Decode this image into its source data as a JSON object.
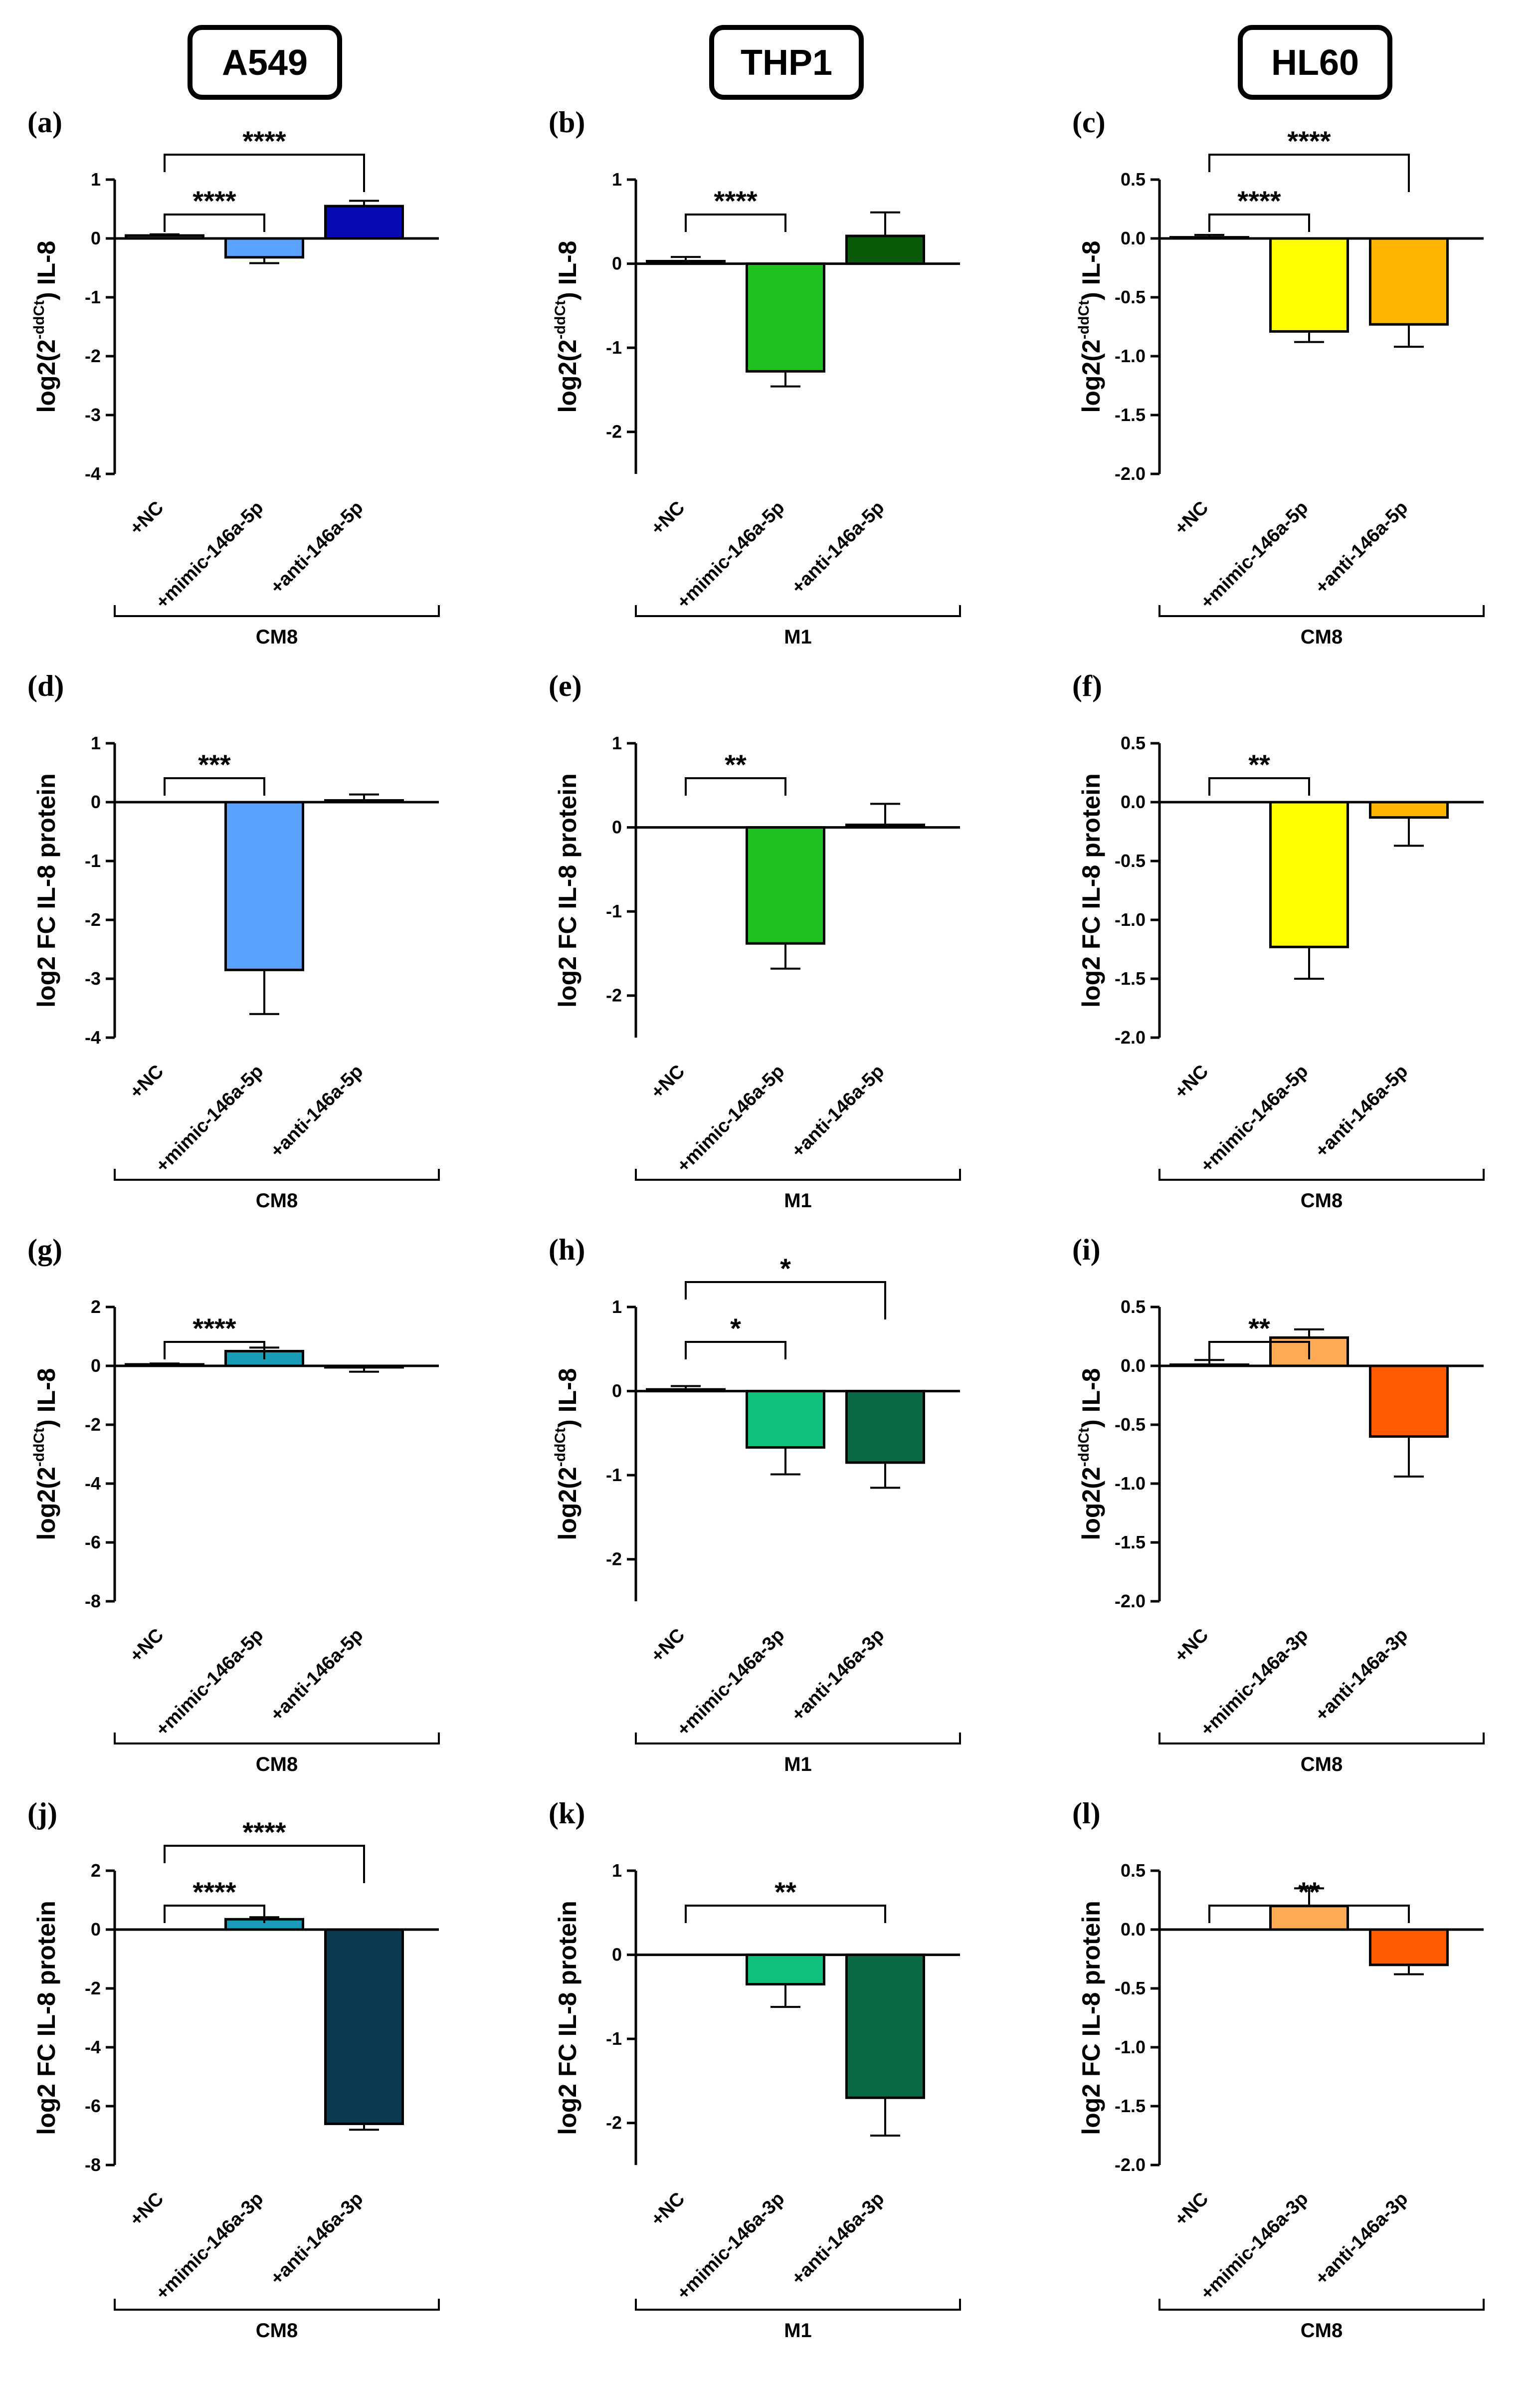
{
  "columns": [
    "A549",
    "THP1",
    "HL60"
  ],
  "chart_data": [
    {
      "panel": "(a)",
      "type": "bar",
      "ylabel_main": "log2(2",
      "ylabel_sup": "-ddCt",
      "ylabel_tail": ") IL-8",
      "yticks": [
        "1",
        "0",
        "-1",
        "-2",
        "-3",
        "-4"
      ],
      "ylim": [
        -4,
        1
      ],
      "categories": [
        "+NC",
        "+mimic-146a-5p",
        "+anti-146a-5p"
      ],
      "values": [
        0.05,
        -0.32,
        0.55
      ],
      "errors": [
        0.02,
        0.1,
        0.09
      ],
      "colors": [
        "#4a4a4a",
        "#5aa2ff",
        "#0a0ab4"
      ],
      "group": "CM8",
      "sig": [
        {
          "from": 0,
          "to": 1,
          "label": "****",
          "level": 1
        },
        {
          "from": 0,
          "to": 2,
          "label": "****",
          "level": 2
        }
      ]
    },
    {
      "panel": "(b)",
      "type": "bar",
      "ylabel_main": "log2(2",
      "ylabel_sup": "-ddCt",
      "ylabel_tail": ") IL-8",
      "yticks": [
        "1",
        "0",
        "-1",
        "-2"
      ],
      "ylim": [
        -2.5,
        1
      ],
      "categories": [
        "+NC",
        "+mimic-146a-5p",
        "+anti-146a-5p"
      ],
      "values": [
        0.03,
        -1.28,
        0.33
      ],
      "errors": [
        0.05,
        0.18,
        0.28
      ],
      "colors": [
        "#4a4a4a",
        "#1fc21f",
        "#0a5a0a"
      ],
      "group": "M1",
      "sig": [
        {
          "from": 0,
          "to": 1,
          "label": "****",
          "level": 1
        }
      ]
    },
    {
      "panel": "(c)",
      "type": "bar",
      "ylabel_main": "log2(2",
      "ylabel_sup": "-ddCt",
      "ylabel_tail": ") IL-8",
      "yticks": [
        "0.5",
        "0.0",
        "-0.5",
        "-1.0",
        "-1.5",
        "-2.0"
      ],
      "ylim": [
        -2,
        0.5
      ],
      "categories": [
        "+NC",
        "+mimic-146a-5p",
        "+anti-146a-5p"
      ],
      "values": [
        0.01,
        -0.79,
        -0.73
      ],
      "errors": [
        0.02,
        0.09,
        0.19
      ],
      "colors": [
        "#4a4a4a",
        "#ffff00",
        "#ffb400"
      ],
      "group": "CM8",
      "sig": [
        {
          "from": 0,
          "to": 1,
          "label": "****",
          "level": 1
        },
        {
          "from": 0,
          "to": 2,
          "label": "****",
          "level": 2
        }
      ]
    },
    {
      "panel": "(d)",
      "type": "bar",
      "ylabel_main": "log2 FC IL-8 protein",
      "ylabel_sup": "",
      "ylabel_tail": "",
      "yticks": [
        "1",
        "0",
        "-1",
        "-2",
        "-3",
        "-4"
      ],
      "ylim": [
        -4,
        1
      ],
      "categories": [
        "+NC",
        "+mimic-146a-5p",
        "+anti-146a-5p"
      ],
      "values": [
        0,
        -2.85,
        0.03
      ],
      "errors": [
        0,
        0.75,
        0.1
      ],
      "colors": [
        "#4a4a4a",
        "#5aa2ff",
        "#0a0ab4"
      ],
      "group": "CM8",
      "sig": [
        {
          "from": 0,
          "to": 1,
          "label": "***",
          "level": 1
        }
      ]
    },
    {
      "panel": "(e)",
      "type": "bar",
      "ylabel_main": "log2 FC IL-8 protein",
      "ylabel_sup": "",
      "ylabel_tail": "",
      "yticks": [
        "1",
        "0",
        "-1",
        "-2"
      ],
      "ylim": [
        -2.5,
        1
      ],
      "categories": [
        "+NC",
        "+mimic-146a-5p",
        "+anti-146a-5p"
      ],
      "values": [
        0,
        -1.38,
        0.03
      ],
      "errors": [
        0,
        0.3,
        0.25
      ],
      "colors": [
        "#4a4a4a",
        "#1fc21f",
        "#0a5a0a"
      ],
      "group": "M1",
      "sig": [
        {
          "from": 0,
          "to": 1,
          "label": "**",
          "level": 1
        }
      ]
    },
    {
      "panel": "(f)",
      "type": "bar",
      "ylabel_main": "log2 FC IL-8 protein",
      "ylabel_sup": "",
      "ylabel_tail": "",
      "yticks": [
        "0.5",
        "0.0",
        "-0.5",
        "-1.0",
        "-1.5",
        "-2.0"
      ],
      "ylim": [
        -2,
        0.5
      ],
      "categories": [
        "+NC",
        "+mimic-146a-5p",
        "+anti-146a-5p"
      ],
      "values": [
        0,
        -1.23,
        -0.13
      ],
      "errors": [
        0,
        0.27,
        0.24
      ],
      "colors": [
        "#4a4a4a",
        "#ffff00",
        "#ffb400"
      ],
      "group": "CM8",
      "sig": [
        {
          "from": 0,
          "to": 1,
          "label": "**",
          "level": 1
        }
      ]
    },
    {
      "panel": "(g)",
      "type": "bar",
      "ylabel_main": "log2(2",
      "ylabel_sup": "-ddCt",
      "ylabel_tail": ") IL-8",
      "yticks": [
        "2",
        "0",
        "-2",
        "-4",
        "-6",
        "-8"
      ],
      "ylim": [
        -8,
        2
      ],
      "categories": [
        "+NC",
        "+mimic-146a-5p",
        "+anti-146a-5p"
      ],
      "values": [
        0.05,
        0.5,
        -0.05
      ],
      "errors": [
        0.03,
        0.12,
        0.15
      ],
      "colors": [
        "#4a4a4a",
        "#1a9cb8",
        "#0a3a50"
      ],
      "group": "CM8",
      "sig": [
        {
          "from": 0,
          "to": 1,
          "label": "****",
          "level": 1
        }
      ]
    },
    {
      "panel": "(h)",
      "type": "bar",
      "ylabel_main": "log2(2",
      "ylabel_sup": "-ddCt",
      "ylabel_tail": ") IL-8",
      "yticks": [
        "1",
        "0",
        "-1",
        "-2"
      ],
      "ylim": [
        -2.5,
        1
      ],
      "categories": [
        "+NC",
        "+mimic-146a-3p",
        "+anti-146a-3p"
      ],
      "values": [
        0.02,
        -0.67,
        -0.85
      ],
      "errors": [
        0.04,
        0.32,
        0.3
      ],
      "colors": [
        "#4a4a4a",
        "#10c07a",
        "#0a6a45"
      ],
      "group": "M1",
      "sig": [
        {
          "from": 0,
          "to": 1,
          "label": "*",
          "level": 1
        },
        {
          "from": 0,
          "to": 2,
          "label": "*",
          "level": 2
        }
      ]
    },
    {
      "panel": "(i)",
      "type": "bar",
      "ylabel_main": "log2(2",
      "ylabel_sup": "-ddCt",
      "ylabel_tail": ") IL-8",
      "yticks": [
        "0.5",
        "0.0",
        "-0.5",
        "-1.0",
        "-1.5",
        "-2.0"
      ],
      "ylim": [
        -2,
        0.5
      ],
      "categories": [
        "+NC",
        "+mimic-146a-3p",
        "+anti-146a-3p"
      ],
      "values": [
        0.01,
        0.24,
        -0.6
      ],
      "errors": [
        0.04,
        0.07,
        0.34
      ],
      "colors": [
        "#4a4a4a",
        "#ffaa55",
        "#ff5a00"
      ],
      "group": "CM8",
      "sig": [
        {
          "from": 0,
          "to": 1,
          "label": "**",
          "level": 1
        }
      ]
    },
    {
      "panel": "(j)",
      "type": "bar",
      "ylabel_main": "log2 FC IL-8 protein",
      "ylabel_sup": "",
      "ylabel_tail": "",
      "yticks": [
        "2",
        "0",
        "-2",
        "-4",
        "-6",
        "-8"
      ],
      "ylim": [
        -8,
        2
      ],
      "categories": [
        "+NC",
        "+mimic-146a-3p",
        "+anti-146a-3p"
      ],
      "values": [
        0,
        0.35,
        -6.6
      ],
      "errors": [
        0,
        0.07,
        0.2
      ],
      "colors": [
        "#4a4a4a",
        "#1a9cb8",
        "#0a3a50"
      ],
      "group": "CM8",
      "sig": [
        {
          "from": 0,
          "to": 1,
          "label": "****",
          "level": 1
        },
        {
          "from": 0,
          "to": 2,
          "label": "****",
          "level": 2
        }
      ]
    },
    {
      "panel": "(k)",
      "type": "bar",
      "ylabel_main": "log2 FC IL-8 protein",
      "ylabel_sup": "",
      "ylabel_tail": "",
      "yticks": [
        "1",
        "0",
        "-1",
        "-2"
      ],
      "ylim": [
        -2.5,
        1
      ],
      "categories": [
        "+NC",
        "+mimic-146a-3p",
        "+anti-146a-3p"
      ],
      "values": [
        0,
        -0.35,
        -1.7
      ],
      "errors": [
        0,
        0.27,
        0.45
      ],
      "colors": [
        "#4a4a4a",
        "#10c07a",
        "#0a6a45"
      ],
      "group": "M1",
      "sig": [
        {
          "from": 0,
          "to": 2,
          "label": "**",
          "level": 1
        }
      ]
    },
    {
      "panel": "(l)",
      "type": "bar",
      "ylabel_main": "log2 FC IL-8 protein",
      "ylabel_sup": "",
      "ylabel_tail": "",
      "yticks": [
        "0.5",
        "0.0",
        "-0.5",
        "-1.0",
        "-1.5",
        "-2.0"
      ],
      "ylim": [
        -2,
        0.5
      ],
      "categories": [
        "+NC",
        "+mimic-146a-3p",
        "+anti-146a-3p"
      ],
      "values": [
        0,
        0.2,
        -0.3
      ],
      "errors": [
        0,
        0.15,
        0.08
      ],
      "colors": [
        "#4a4a4a",
        "#ffaa55",
        "#ff5a00"
      ],
      "group": "CM8",
      "sig": [
        {
          "from": 0,
          "to": 2,
          "label": "**",
          "level": 1
        }
      ]
    }
  ]
}
